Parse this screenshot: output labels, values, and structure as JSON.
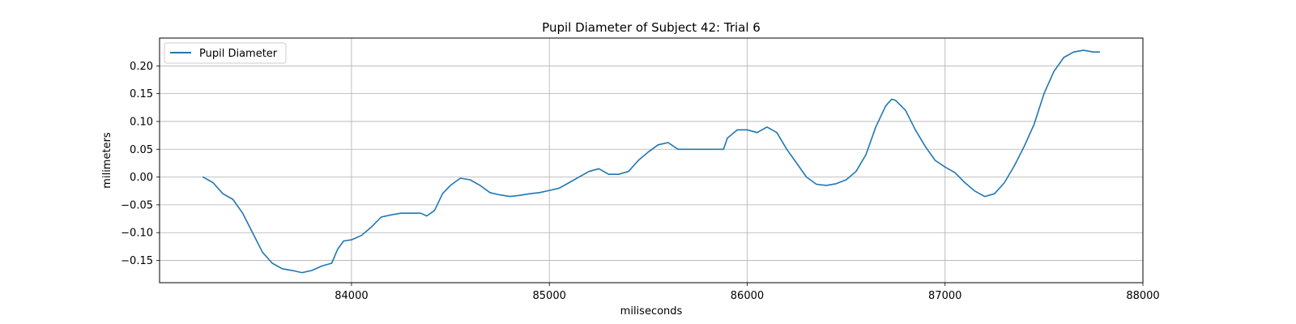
{
  "chart_data": {
    "type": "line",
    "title": "Pupil Diameter of Subject 42: Trial 6",
    "xlabel": "miliseconds",
    "ylabel": "milimeters",
    "xlim": [
      83030,
      88000
    ],
    "ylim": [
      -0.19,
      0.25
    ],
    "xticks": [
      84000,
      85000,
      86000,
      87000,
      88000
    ],
    "xtick_labels": [
      "84000",
      "85000",
      "86000",
      "87000",
      "88000"
    ],
    "yticks": [
      -0.15,
      -0.1,
      -0.05,
      0.0,
      0.05,
      0.1,
      0.15,
      0.2
    ],
    "ytick_labels": [
      "−0.15",
      "−0.10",
      "−0.05",
      "0.00",
      "0.05",
      "0.10",
      "0.15",
      "0.20"
    ],
    "grid": true,
    "legend": {
      "placement": "top-left"
    },
    "colors": {
      "series": "#1f77b4"
    },
    "series": [
      {
        "name": "Pupil Diameter",
        "x": [
          83250,
          83300,
          83350,
          83400,
          83450,
          83500,
          83550,
          83600,
          83650,
          83700,
          83750,
          83800,
          83850,
          83900,
          83930,
          83960,
          84000,
          84050,
          84100,
          84150,
          84200,
          84250,
          84300,
          84350,
          84380,
          84420,
          84460,
          84500,
          84550,
          84600,
          84650,
          84700,
          84750,
          84800,
          84850,
          84900,
          84950,
          85000,
          85050,
          85100,
          85150,
          85200,
          85250,
          85300,
          85350,
          85400,
          85450,
          85500,
          85550,
          85600,
          85650,
          85700,
          85750,
          85800,
          85850,
          85880,
          85900,
          85950,
          86000,
          86050,
          86100,
          86150,
          86200,
          86250,
          86300,
          86350,
          86400,
          86450,
          86500,
          86550,
          86600,
          86650,
          86700,
          86730,
          86750,
          86800,
          86850,
          86900,
          86950,
          87000,
          87050,
          87100,
          87150,
          87200,
          87250,
          87300,
          87350,
          87400,
          87450,
          87500,
          87550,
          87600,
          87650,
          87700,
          87750,
          87780
        ],
        "y": [
          0.0,
          -0.01,
          -0.03,
          -0.04,
          -0.065,
          -0.1,
          -0.135,
          -0.155,
          -0.165,
          -0.168,
          -0.172,
          -0.168,
          -0.16,
          -0.155,
          -0.13,
          -0.115,
          -0.113,
          -0.105,
          -0.09,
          -0.072,
          -0.068,
          -0.065,
          -0.065,
          -0.065,
          -0.07,
          -0.06,
          -0.03,
          -0.015,
          -0.002,
          -0.005,
          -0.015,
          -0.028,
          -0.032,
          -0.035,
          -0.033,
          -0.03,
          -0.028,
          -0.024,
          -0.02,
          -0.01,
          0.0,
          0.01,
          0.015,
          0.005,
          0.005,
          0.01,
          0.03,
          0.045,
          0.058,
          0.062,
          0.05,
          0.05,
          0.05,
          0.05,
          0.05,
          0.05,
          0.07,
          0.085,
          0.085,
          0.08,
          0.09,
          0.08,
          0.05,
          0.025,
          0.0,
          -0.013,
          -0.015,
          -0.012,
          -0.005,
          0.01,
          0.04,
          0.09,
          0.128,
          0.14,
          0.138,
          0.12,
          0.085,
          0.055,
          0.03,
          0.018,
          0.008,
          -0.01,
          -0.025,
          -0.035,
          -0.03,
          -0.01,
          0.02,
          0.055,
          0.095,
          0.15,
          0.19,
          0.215,
          0.225,
          0.228,
          0.225,
          0.225
        ]
      }
    ]
  }
}
